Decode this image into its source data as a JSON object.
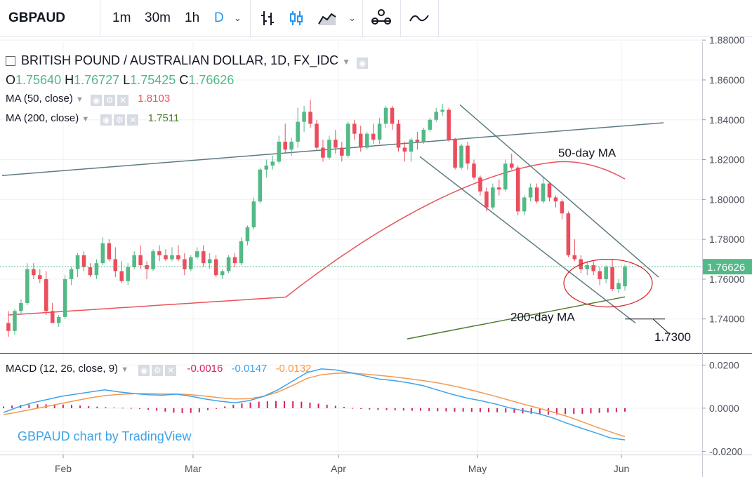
{
  "toolbar": {
    "symbol": "GBPAUD",
    "intervals": [
      "1m",
      "30m",
      "1h",
      "D"
    ],
    "active_interval": "D"
  },
  "legend": {
    "title": "BRITISH POUND / AUSTRALIAN DOLLAR, 1D, FX_IDC",
    "ohlc": {
      "o_label": "O",
      "o": "1.75640",
      "h_label": "H",
      "h": "1.76727",
      "l_label": "L",
      "l": "1.75425",
      "c_label": "C",
      "c": "1.76626"
    },
    "ma50_label": "MA (50, close)",
    "ma50_value": "1.8103",
    "ma200_label": "MA (200, close)",
    "ma200_value": "1.7511",
    "macd_label": "MACD (12, 26, close, 9)",
    "macd_hist": "-0.0016",
    "macd_line": "-0.0147",
    "macd_signal": "-0.0132"
  },
  "watermark": "GBPAUD chart by TradingView",
  "annotations": {
    "ma50": "50-day MA",
    "ma200": "200-day MA",
    "target": "1.7300"
  },
  "price_label": "1.76626",
  "colors": {
    "up": "#53b987",
    "down": "#eb4d5c",
    "ma50": "#e8535c",
    "ma200": "#4e7b2f",
    "macd": "#3ea3e8",
    "signal": "#f39a4f",
    "hist": "#d61f63",
    "trendline": "#5e7a82"
  },
  "chart_data": [
    {
      "type": "candlestick",
      "title": "BRITISH POUND / AUSTRALIAN DOLLAR, 1D, FX_IDC",
      "xlabels": [
        "Feb",
        "Mar",
        "Apr",
        "May",
        "Jun"
      ],
      "yticks": [
        "1.74000",
        "1.76000",
        "1.78000",
        "1.80000",
        "1.82000",
        "1.84000",
        "1.86000",
        "1.88000"
      ],
      "ylim": [
        1.723,
        1.879
      ],
      "candles": [
        [
          1.738,
          1.744,
          1.731,
          1.734
        ],
        [
          1.734,
          1.745,
          1.732,
          1.744
        ],
        [
          1.744,
          1.75,
          1.742,
          1.748
        ],
        [
          1.748,
          1.768,
          1.747,
          1.765
        ],
        [
          1.765,
          1.768,
          1.76,
          1.762
        ],
        [
          1.762,
          1.765,
          1.758,
          1.76
        ],
        [
          1.76,
          1.764,
          1.742,
          1.744
        ],
        [
          1.744,
          1.748,
          1.738,
          1.738
        ],
        [
          1.738,
          1.742,
          1.736,
          1.741
        ],
        [
          1.741,
          1.762,
          1.74,
          1.76
        ],
        [
          1.76,
          1.766,
          1.757,
          1.765
        ],
        [
          1.765,
          1.773,
          1.761,
          1.772
        ],
        [
          1.772,
          1.774,
          1.764,
          1.766
        ],
        [
          1.766,
          1.768,
          1.761,
          1.762
        ],
        [
          1.762,
          1.77,
          1.76,
          1.768
        ],
        [
          1.768,
          1.781,
          1.767,
          1.778
        ],
        [
          1.778,
          1.78,
          1.769,
          1.77
        ],
        [
          1.77,
          1.776,
          1.761,
          1.764
        ],
        [
          1.764,
          1.769,
          1.758,
          1.759
        ],
        [
          1.759,
          1.768,
          1.757,
          1.766
        ],
        [
          1.766,
          1.774,
          1.765,
          1.772
        ],
        [
          1.772,
          1.777,
          1.765,
          1.767
        ],
        [
          1.767,
          1.769,
          1.76,
          1.765
        ],
        [
          1.765,
          1.775,
          1.764,
          1.774
        ],
        [
          1.774,
          1.777,
          1.769,
          1.772
        ],
        [
          1.772,
          1.775,
          1.769,
          1.77
        ],
        [
          1.77,
          1.776,
          1.769,
          1.772
        ],
        [
          1.772,
          1.777,
          1.769,
          1.77
        ],
        [
          1.77,
          1.773,
          1.762,
          1.765
        ],
        [
          1.765,
          1.772,
          1.764,
          1.771
        ],
        [
          1.771,
          1.776,
          1.77,
          1.774
        ],
        [
          1.774,
          1.777,
          1.766,
          1.768
        ],
        [
          1.768,
          1.773,
          1.765,
          1.77
        ],
        [
          1.77,
          1.772,
          1.761,
          1.762
        ],
        [
          1.762,
          1.765,
          1.76,
          1.764
        ],
        [
          1.764,
          1.772,
          1.763,
          1.771
        ],
        [
          1.771,
          1.773,
          1.766,
          1.768
        ],
        [
          1.768,
          1.781,
          1.767,
          1.779
        ],
        [
          1.779,
          1.787,
          1.777,
          1.786
        ],
        [
          1.786,
          1.801,
          1.785,
          1.799
        ],
        [
          1.799,
          1.816,
          1.798,
          1.815
        ],
        [
          1.815,
          1.82,
          1.811,
          1.817
        ],
        [
          1.817,
          1.822,
          1.815,
          1.819
        ],
        [
          1.819,
          1.832,
          1.818,
          1.829
        ],
        [
          1.829,
          1.838,
          1.823,
          1.825
        ],
        [
          1.825,
          1.831,
          1.822,
          1.829
        ],
        [
          1.829,
          1.846,
          1.826,
          1.839
        ],
        [
          1.839,
          1.847,
          1.834,
          1.844
        ],
        [
          1.844,
          1.85,
          1.836,
          1.838
        ],
        [
          1.838,
          1.84,
          1.825,
          1.826
        ],
        [
          1.826,
          1.83,
          1.819,
          1.821
        ],
        [
          1.821,
          1.832,
          1.82,
          1.83
        ],
        [
          1.83,
          1.835,
          1.823,
          1.826
        ],
        [
          1.826,
          1.829,
          1.819,
          1.822
        ],
        [
          1.822,
          1.839,
          1.821,
          1.838
        ],
        [
          1.838,
          1.84,
          1.83,
          1.833
        ],
        [
          1.833,
          1.837,
          1.824,
          1.826
        ],
        [
          1.826,
          1.834,
          1.825,
          1.833
        ],
        [
          1.833,
          1.838,
          1.828,
          1.83
        ],
        [
          1.83,
          1.841,
          1.828,
          1.838
        ],
        [
          1.838,
          1.847,
          1.836,
          1.846
        ],
        [
          1.846,
          1.847,
          1.835,
          1.838
        ],
        [
          1.838,
          1.84,
          1.824,
          1.826
        ],
        [
          1.826,
          1.829,
          1.819,
          1.824
        ],
        [
          1.824,
          1.831,
          1.819,
          1.83
        ],
        [
          1.83,
          1.834,
          1.825,
          1.829
        ],
        [
          1.829,
          1.836,
          1.828,
          1.835
        ],
        [
          1.835,
          1.841,
          1.834,
          1.84
        ],
        [
          1.84,
          1.846,
          1.839,
          1.844
        ],
        [
          1.844,
          1.848,
          1.842,
          1.845
        ],
        [
          1.845,
          1.846,
          1.829,
          1.83
        ],
        [
          1.83,
          1.831,
          1.815,
          1.816
        ],
        [
          1.816,
          1.828,
          1.815,
          1.827
        ],
        [
          1.827,
          1.829,
          1.815,
          1.818
        ],
        [
          1.818,
          1.82,
          1.81,
          1.811
        ],
        [
          1.811,
          1.812,
          1.802,
          1.804
        ],
        [
          1.804,
          1.806,
          1.794,
          1.796
        ],
        [
          1.796,
          1.808,
          1.795,
          1.806
        ],
        [
          1.806,
          1.81,
          1.802,
          1.805
        ],
        [
          1.805,
          1.82,
          1.804,
          1.818
        ],
        [
          1.818,
          1.823,
          1.815,
          1.816
        ],
        [
          1.816,
          1.817,
          1.792,
          1.794
        ],
        [
          1.794,
          1.802,
          1.792,
          1.801
        ],
        [
          1.801,
          1.808,
          1.799,
          1.806
        ],
        [
          1.806,
          1.808,
          1.798,
          1.799
        ],
        [
          1.799,
          1.811,
          1.798,
          1.808
        ],
        [
          1.808,
          1.809,
          1.799,
          1.801
        ],
        [
          1.801,
          1.802,
          1.796,
          1.799
        ],
        [
          1.799,
          1.8,
          1.79,
          1.793
        ],
        [
          1.793,
          1.794,
          1.771,
          1.772
        ],
        [
          1.772,
          1.78,
          1.769,
          1.77
        ],
        [
          1.77,
          1.772,
          1.763,
          1.765
        ],
        [
          1.765,
          1.769,
          1.762,
          1.767
        ],
        [
          1.767,
          1.769,
          1.762,
          1.764
        ],
        [
          1.764,
          1.766,
          1.757,
          1.76
        ],
        [
          1.76,
          1.767,
          1.758,
          1.766
        ],
        [
          1.766,
          1.77,
          1.754,
          1.755
        ],
        [
          1.755,
          1.76,
          1.753,
          1.758
        ],
        [
          1.7564,
          1.76727,
          1.75425,
          1.76626
        ]
      ],
      "ma50": {
        "start": 1.742,
        "end": 1.8103
      },
      "ma200": {
        "start": 1.73,
        "end": 1.7511
      }
    },
    {
      "type": "line",
      "title": "MACD (12, 26, close, 9)",
      "yticks": [
        "-0.0200",
        "0.0000",
        "0.0200"
      ],
      "ylim": [
        -0.0215,
        0.025
      ],
      "series": [
        {
          "name": "MACD",
          "values": [
            -0.002,
            0.0005,
            0.0025,
            0.004,
            0.0055,
            0.0065,
            0.0075,
            0.0085,
            0.0075,
            0.0068,
            0.0062,
            0.006,
            0.0065,
            0.0055,
            0.0042,
            0.0032,
            0.0025,
            0.0035,
            0.0055,
            0.0085,
            0.0125,
            0.0165,
            0.0182,
            0.0177,
            0.0165,
            0.015,
            0.0135,
            0.0128,
            0.0118,
            0.0105,
            0.0085,
            0.0065,
            0.0048,
            0.0035,
            0.002,
            0.0002,
            -0.0012,
            -0.0025,
            -0.0045,
            -0.007,
            -0.0093,
            -0.0115,
            -0.0138,
            -0.0147
          ]
        },
        {
          "name": "Signal",
          "values": [
            -0.003,
            -0.0018,
            -0.0005,
            0.0008,
            0.0022,
            0.0035,
            0.0048,
            0.0058,
            0.0064,
            0.0067,
            0.0068,
            0.0066,
            0.0066,
            0.0062,
            0.0056,
            0.0048,
            0.0043,
            0.0044,
            0.0055,
            0.0075,
            0.0105,
            0.0138,
            0.0155,
            0.0162,
            0.0163,
            0.0158,
            0.0152,
            0.0145,
            0.0137,
            0.0128,
            0.0118,
            0.0105,
            0.009,
            0.0073,
            0.0056,
            0.0037,
            0.0018,
            0.0001,
            -0.0018,
            -0.0038,
            -0.0062,
            -0.0087,
            -0.011,
            -0.0132
          ]
        }
      ],
      "histogram": [
        0.0008,
        0.0012,
        0.0015,
        0.0017,
        0.0018,
        0.0018,
        0.0018,
        0.0017,
        0.0015,
        0.0012,
        0.0009,
        0.0007,
        0.0005,
        0.0003,
        0.0002,
        0.0001,
        -0.0002,
        -0.0007,
        -0.0012,
        -0.0016,
        -0.0021,
        -0.0023,
        -0.0022,
        -0.0019,
        -0.0009,
        0.0,
        0.0008,
        0.0016,
        0.0022,
        0.0027,
        0.003,
        0.0032,
        0.0033,
        0.0033,
        0.0032,
        0.003,
        0.0026,
        0.0021,
        0.0016,
        0.0011,
        0.0006,
        0.0001,
        -0.0004,
        -0.0006,
        -0.0008,
        -0.0009,
        -0.001,
        -0.0011,
        -0.0012,
        -0.0012,
        -0.0013,
        -0.0014,
        -0.0015,
        -0.0016,
        -0.0016,
        -0.0017,
        -0.0018,
        -0.0018,
        -0.0019,
        -0.002,
        -0.0022,
        -0.0024,
        -0.0026,
        -0.0028,
        -0.003,
        -0.0029,
        -0.0028,
        -0.0027,
        -0.0026,
        -0.0024,
        -0.0022,
        -0.002,
        -0.0018,
        -0.0016
      ]
    }
  ]
}
